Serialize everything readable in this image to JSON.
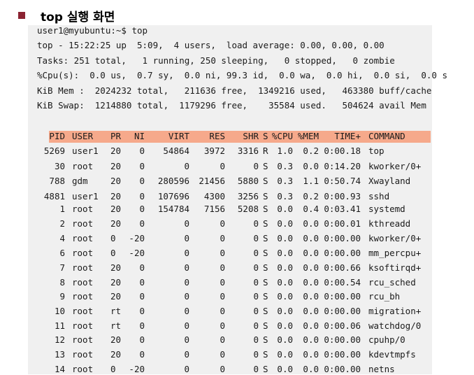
{
  "heading": {
    "title": "top 실행 화면"
  },
  "terminal": {
    "prompt": "user1@myubuntu:~$ top",
    "summary": [
      "top - 15:22:25 up  5:09,  4 users,  load average: 0.00, 0.00, 0.00",
      "Tasks: 251 total,   1 running, 250 sleeping,   0 stopped,   0 zombie",
      "%Cpu(s):  0.0 us,  0.7 sy,  0.0 ni, 99.3 id,  0.0 wa,  0.0 hi,  0.0 si,  0.0 s",
      "KiB Mem :  2024232 total,   211636 free,  1349216 used,   463380 buff/cache",
      "KiB Swap:  1214880 total,  1179296 free,    35584 used.   504624 avail Mem"
    ],
    "columns": [
      "PID",
      "USER",
      "PR",
      "NI",
      "VIRT",
      "RES",
      "SHR",
      "S",
      "%CPU",
      "%MEM",
      "TIME+",
      "COMMAND"
    ],
    "processes": [
      [
        "5269",
        "user1",
        "20",
        "0",
        "54864",
        "3972",
        "3316",
        "R",
        "1.0",
        "0.2",
        "0:00.18",
        "top"
      ],
      [
        "30",
        "root",
        "20",
        "0",
        "0",
        "0",
        "0",
        "S",
        "0.3",
        "0.0",
        "0:14.20",
        "kworker/0+"
      ],
      [
        "788",
        "gdm",
        "20",
        "0",
        "280596",
        "21456",
        "5880",
        "S",
        "0.3",
        "1.1",
        "0:50.74",
        "Xwayland"
      ],
      [
        "4881",
        "user1",
        "20",
        "0",
        "107696",
        "4300",
        "3256",
        "S",
        "0.3",
        "0.2",
        "0:00.93",
        "sshd"
      ],
      [
        "1",
        "root",
        "20",
        "0",
        "154784",
        "7156",
        "5208",
        "S",
        "0.0",
        "0.4",
        "0:03.41",
        "systemd"
      ],
      [
        "2",
        "root",
        "20",
        "0",
        "0",
        "0",
        "0",
        "S",
        "0.0",
        "0.0",
        "0:00.01",
        "kthreadd"
      ],
      [
        "4",
        "root",
        "0",
        "-20",
        "0",
        "0",
        "0",
        "S",
        "0.0",
        "0.0",
        "0:00.00",
        "kworker/0+"
      ],
      [
        "6",
        "root",
        "0",
        "-20",
        "0",
        "0",
        "0",
        "S",
        "0.0",
        "0.0",
        "0:00.00",
        "mm_percpu+"
      ],
      [
        "7",
        "root",
        "20",
        "0",
        "0",
        "0",
        "0",
        "S",
        "0.0",
        "0.0",
        "0:00.66",
        "ksoftirqd+"
      ],
      [
        "8",
        "root",
        "20",
        "0",
        "0",
        "0",
        "0",
        "S",
        "0.0",
        "0.0",
        "0:00.54",
        "rcu_sched"
      ],
      [
        "9",
        "root",
        "20",
        "0",
        "0",
        "0",
        "0",
        "S",
        "0.0",
        "0.0",
        "0:00.00",
        "rcu_bh"
      ],
      [
        "10",
        "root",
        "rt",
        "0",
        "0",
        "0",
        "0",
        "S",
        "0.0",
        "0.0",
        "0:00.00",
        "migration+"
      ],
      [
        "11",
        "root",
        "rt",
        "0",
        "0",
        "0",
        "0",
        "S",
        "0.0",
        "0.0",
        "0:00.06",
        "watchdog/0"
      ],
      [
        "12",
        "root",
        "20",
        "0",
        "0",
        "0",
        "0",
        "S",
        "0.0",
        "0.0",
        "0:00.00",
        "cpuhp/0"
      ],
      [
        "13",
        "root",
        "20",
        "0",
        "0",
        "0",
        "0",
        "S",
        "0.0",
        "0.0",
        "0:00.00",
        "kdevtmpfs"
      ],
      [
        "14",
        "root",
        "0",
        "-20",
        "0",
        "0",
        "0",
        "S",
        "0.0",
        "0.0",
        "0:00.00",
        "netns"
      ]
    ],
    "colors": {
      "header_highlight": "#f6a98b",
      "terminal_background": "#f0f0f0",
      "bullet": "#8b2332"
    }
  }
}
